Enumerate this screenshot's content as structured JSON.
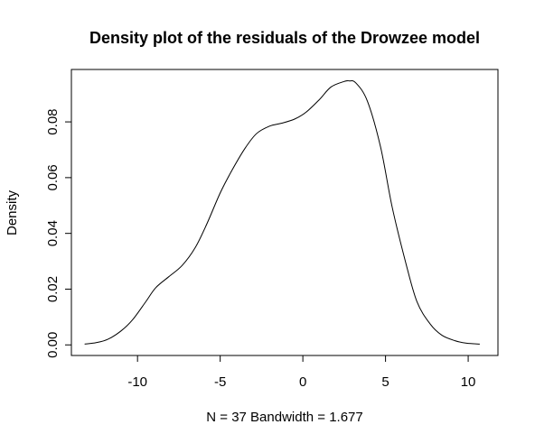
{
  "chart_data": {
    "type": "line",
    "title": "Density plot of the residuals of the Drowzee model",
    "xlabel": "N = 37   Bandwidth = 1.677",
    "ylabel": "Density",
    "xlim": [
      -14.0,
      11.8
    ],
    "ylim": [
      -0.0038,
      0.0988
    ],
    "x_ticks": [
      -10,
      -5,
      0,
      5,
      10
    ],
    "y_ticks": [
      0.0,
      0.02,
      0.04,
      0.06,
      0.08
    ],
    "x_tick_labels": [
      "-10",
      "-5",
      "0",
      "5",
      "10"
    ],
    "y_tick_labels": [
      "0.00",
      "0.02",
      "0.04",
      "0.06",
      "0.08"
    ],
    "grid": false,
    "line_color": "#000000",
    "series": [
      {
        "x": [
          -13.2,
          -12.5,
          -11.8,
          -11.0,
          -10.3,
          -9.5,
          -8.9,
          -8.1,
          -7.3,
          -6.5,
          -5.8,
          -5.0,
          -4.3,
          -3.5,
          -2.8,
          -2.0,
          -1.3,
          -0.5,
          0.2,
          1.0,
          1.7,
          2.5,
          2.8,
          3.2,
          3.9,
          4.7,
          5.4,
          6.2,
          6.9,
          7.7,
          8.4,
          9.2,
          9.9,
          10.7
        ],
        "y": [
          0.0003,
          0.0008,
          0.002,
          0.005,
          0.009,
          0.0155,
          0.0205,
          0.0245,
          0.0285,
          0.035,
          0.0435,
          0.0545,
          0.0625,
          0.0705,
          0.0758,
          0.0785,
          0.0795,
          0.081,
          0.0835,
          0.088,
          0.0925,
          0.0945,
          0.0947,
          0.094,
          0.0875,
          0.071,
          0.0495,
          0.03,
          0.0155,
          0.0075,
          0.0035,
          0.0015,
          0.0006,
          0.0003
        ]
      }
    ]
  }
}
